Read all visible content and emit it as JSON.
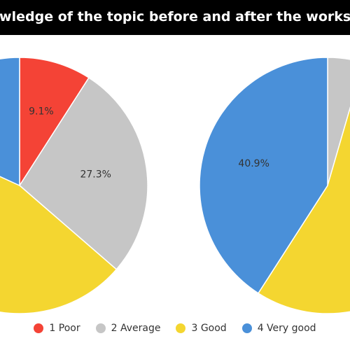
{
  "title": "owledge of the topic before and after the works",
  "colors": {
    "poor": "#f44336",
    "average": "#c6c6c6",
    "good": "#f4d630",
    "very_good": "#4a90d9"
  },
  "legend": [
    {
      "label": "1 Poor",
      "color": "#f44336"
    },
    {
      "label": "2 Average",
      "color": "#c6c6c6"
    },
    {
      "label": "3 Good",
      "color": "#f4d630"
    },
    {
      "label": "4 Very good",
      "color": "#4a90d9"
    }
  ],
  "chart_data": [
    {
      "type": "pie",
      "categories": [
        "1 Poor",
        "2 Average",
        "3 Good",
        "4 Very good"
      ],
      "values": [
        9.1,
        27.3,
        45.5,
        18.2
      ],
      "data_labels": [
        "9.1%",
        "27.3%",
        "",
        ""
      ]
    },
    {
      "type": "pie",
      "categories": [
        "1 Poor",
        "2 Average",
        "3 Good",
        "4 Very good"
      ],
      "values": [
        0,
        4.5,
        54.6,
        40.9
      ],
      "data_labels": [
        "",
        "",
        "",
        "40.9%"
      ]
    }
  ]
}
